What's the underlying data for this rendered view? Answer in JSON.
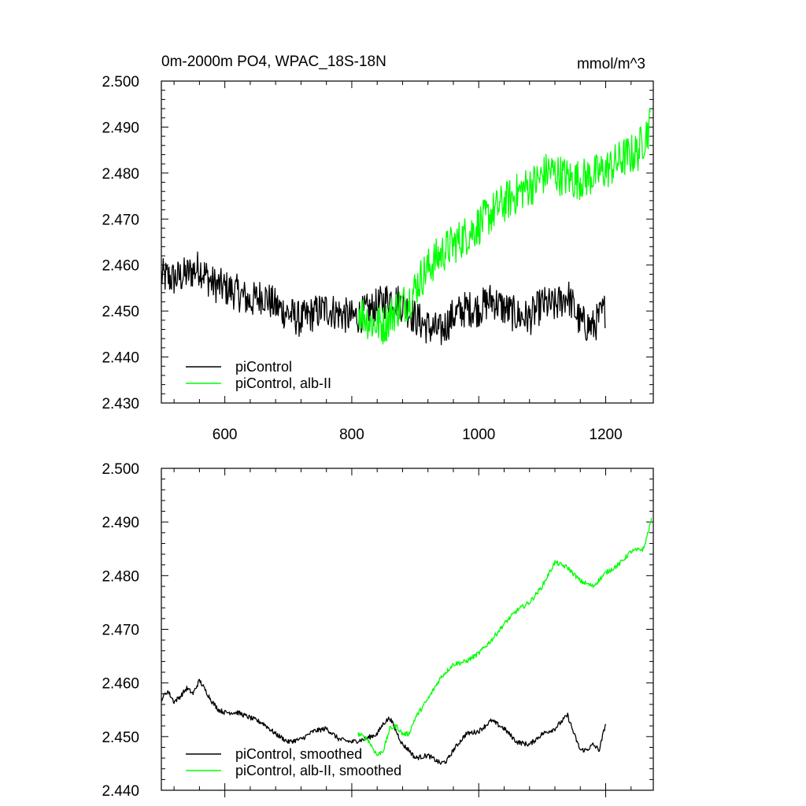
{
  "header": {
    "title": "0m-2000m PO4, WPAC_18S-18N",
    "units": "mmol/m^3"
  },
  "colors": {
    "control": "#000000",
    "experiment": "#00ff00"
  },
  "chart_data": [
    {
      "type": "line",
      "panel": "top",
      "title": "0m-2000m PO4, WPAC_18S-18N",
      "unit_label": "mmol/m^3",
      "xlim": [
        500,
        1275
      ],
      "ylim": [
        2.43,
        2.5
      ],
      "x_ticks": [
        600,
        800,
        1000,
        1200
      ],
      "y_ticks": [
        "2.430",
        "2.440",
        "2.450",
        "2.460",
        "2.470",
        "2.480",
        "2.490",
        "2.500"
      ],
      "legend_position": "bottom-left",
      "series": [
        {
          "name": "piControl",
          "color": "#000000",
          "x": [
            500,
            520,
            540,
            560,
            580,
            600,
            620,
            640,
            660,
            680,
            700,
            720,
            740,
            760,
            780,
            800,
            820,
            840,
            860,
            880,
            900,
            920,
            940,
            960,
            980,
            1000,
            1020,
            1040,
            1060,
            1080,
            1100,
            1120,
            1140,
            1160,
            1180,
            1200
          ],
          "y": [
            2.4575,
            2.457,
            2.458,
            2.4595,
            2.456,
            2.455,
            2.454,
            2.452,
            2.4535,
            2.451,
            2.4495,
            2.448,
            2.4495,
            2.4505,
            2.4495,
            2.4485,
            2.4495,
            2.451,
            2.453,
            2.4515,
            2.4485,
            2.4465,
            2.4455,
            2.449,
            2.4505,
            2.4505,
            2.4525,
            2.4505,
            2.449,
            2.4485,
            2.4515,
            2.451,
            2.4535,
            2.4475,
            2.4465,
            2.4505
          ],
          "amplitude": 0.004
        },
        {
          "name": "piControl, alb-II",
          "color": "#00ff00",
          "x": [
            810,
            830,
            850,
            870,
            890,
            910,
            930,
            950,
            970,
            990,
            1010,
            1030,
            1050,
            1070,
            1090,
            1110,
            1130,
            1150,
            1170,
            1190,
            1210,
            1230,
            1250,
            1270
          ],
          "y": [
            2.4505,
            2.4475,
            2.447,
            2.4505,
            2.4525,
            2.4575,
            2.461,
            2.4635,
            2.4655,
            2.4675,
            2.47,
            2.4725,
            2.4745,
            2.4765,
            2.478,
            2.4805,
            2.4795,
            2.4785,
            2.479,
            2.48,
            2.4815,
            2.4835,
            2.4845,
            2.4905
          ],
          "amplitude": 0.0045
        }
      ]
    },
    {
      "type": "line",
      "panel": "bottom",
      "xlim": [
        500,
        1275
      ],
      "ylim": [
        2.44,
        2.5
      ],
      "y_ticks": [
        "2.440",
        "2.450",
        "2.460",
        "2.470",
        "2.480",
        "2.490",
        "2.500"
      ],
      "legend_position": "bottom-left",
      "series": [
        {
          "name": "piControl, smoothed",
          "color": "#000000",
          "x": [
            500,
            510,
            520,
            530,
            540,
            550,
            560,
            570,
            580,
            590,
            600,
            620,
            640,
            660,
            680,
            700,
            720,
            740,
            760,
            780,
            800,
            820,
            840,
            850,
            860,
            870,
            880,
            890,
            900,
            920,
            940,
            950,
            960,
            980,
            1000,
            1020,
            1040,
            1060,
            1080,
            1100,
            1120,
            1140,
            1150,
            1160,
            1170,
            1180,
            1190,
            1200
          ],
          "y": [
            2.457,
            2.4585,
            2.4565,
            2.4575,
            2.459,
            2.458,
            2.4605,
            2.4585,
            2.4565,
            2.455,
            2.4545,
            2.4545,
            2.4535,
            2.4525,
            2.4505,
            2.449,
            2.4495,
            2.451,
            2.4515,
            2.4495,
            2.449,
            2.4495,
            2.4505,
            2.4525,
            2.4535,
            2.451,
            2.4485,
            2.4475,
            2.446,
            2.4465,
            2.445,
            2.4455,
            2.4475,
            2.4505,
            2.451,
            2.453,
            2.4515,
            2.449,
            2.4485,
            2.4505,
            2.4515,
            2.454,
            2.4505,
            2.4475,
            2.4475,
            2.4485,
            2.4475,
            2.4525
          ]
        },
        {
          "name": "piControl, alb-II, smoothed",
          "color": "#00ff00",
          "x": [
            810,
            825,
            840,
            850,
            860,
            870,
            880,
            890,
            900,
            920,
            940,
            960,
            980,
            1000,
            1020,
            1040,
            1060,
            1080,
            1100,
            1120,
            1140,
            1160,
            1180,
            1200,
            1220,
            1240,
            1260,
            1272
          ],
          "y": [
            2.4505,
            2.4495,
            2.4465,
            2.4475,
            2.4515,
            2.452,
            2.4505,
            2.4505,
            2.4535,
            2.457,
            2.461,
            2.4635,
            2.464,
            2.4655,
            2.468,
            2.471,
            2.4735,
            2.475,
            2.478,
            2.4825,
            2.4815,
            2.479,
            2.478,
            2.4805,
            2.482,
            2.4845,
            2.485,
            2.4905
          ]
        }
      ]
    }
  ]
}
